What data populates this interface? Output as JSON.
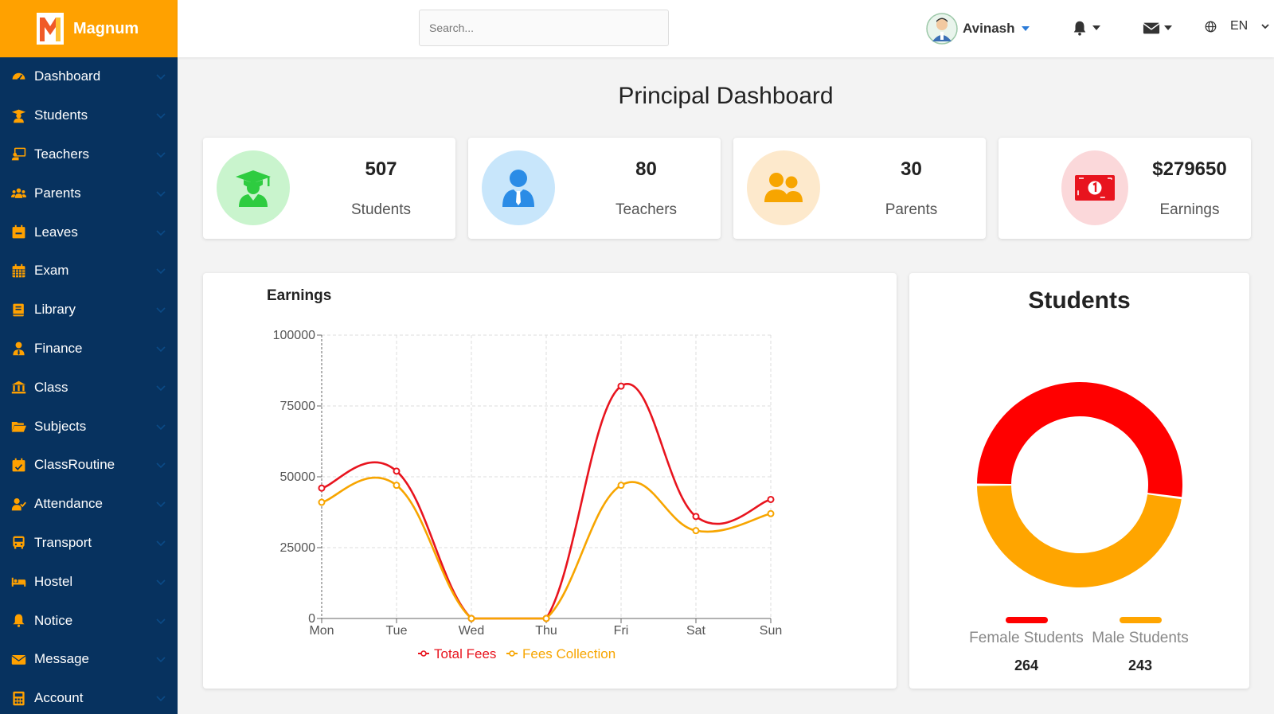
{
  "brand": {
    "name": "Magnum"
  },
  "sidebar": {
    "items": [
      {
        "label": "Dashboard",
        "icon": "gauge-icon"
      },
      {
        "label": "Students",
        "icon": "graduate-icon"
      },
      {
        "label": "Teachers",
        "icon": "chalkboard-teacher-icon"
      },
      {
        "label": "Parents",
        "icon": "users-icon"
      },
      {
        "label": "Leaves",
        "icon": "calendar-minus-icon"
      },
      {
        "label": "Exam",
        "icon": "calendar-grid-icon"
      },
      {
        "label": "Library",
        "icon": "book-icon"
      },
      {
        "label": "Finance",
        "icon": "user-tie-icon"
      },
      {
        "label": "Class",
        "icon": "university-icon"
      },
      {
        "label": "Subjects",
        "icon": "folder-open-icon"
      },
      {
        "label": "ClassRoutine",
        "icon": "calendar-check-icon"
      },
      {
        "label": "Attendance",
        "icon": "user-check-icon"
      },
      {
        "label": "Transport",
        "icon": "bus-icon"
      },
      {
        "label": "Hostel",
        "icon": "bed-icon"
      },
      {
        "label": "Notice",
        "icon": "bell-icon"
      },
      {
        "label": "Message",
        "icon": "envelope-icon"
      },
      {
        "label": "Account",
        "icon": "calculator-icon"
      }
    ]
  },
  "topbar": {
    "search_placeholder": "Search...",
    "user_name": "Avinash",
    "language": "EN"
  },
  "page": {
    "title": "Principal Dashboard"
  },
  "stats": [
    {
      "value": "507",
      "label": "Students",
      "icon": "graduate-icon"
    },
    {
      "value": "80",
      "label": "Teachers",
      "icon": "user-tie-icon"
    },
    {
      "value": "30",
      "label": "Parents",
      "icon": "users-icon"
    },
    {
      "value": "$279650",
      "label": "Earnings",
      "icon": "money-bill-icon"
    }
  ],
  "colors": {
    "sidebar_bg": "#07325f",
    "brand_bg": "#ffa100",
    "accent_red": "#e8141e",
    "accent_orange": "#f7a500",
    "students_circle": "#c9f4cd",
    "teachers_circle": "#c8e6fb",
    "parents_circle": "#fde9cc",
    "earnings_circle": "#fbd8da"
  },
  "chart_data": [
    {
      "type": "line",
      "title": "Earnings",
      "categories": [
        "Mon",
        "Tue",
        "Wed",
        "Thu",
        "Fri",
        "Sat",
        "Sun"
      ],
      "series": [
        {
          "name": "Total Fees",
          "color": "#e8141e",
          "values": [
            46000,
            52000,
            0,
            0,
            82000,
            36000,
            42000
          ]
        },
        {
          "name": "Fees Collection",
          "color": "#f7a500",
          "values": [
            41000,
            47000,
            0,
            0,
            47000,
            31000,
            37000
          ]
        }
      ],
      "ylim": [
        0,
        100000
      ],
      "yticks": [
        0,
        25000,
        50000,
        75000,
        100000
      ],
      "grid": true,
      "legend": "bottom"
    },
    {
      "type": "pie",
      "title": "Students",
      "categories": [
        "Female Students",
        "Male Students"
      ],
      "values": [
        264,
        243
      ],
      "colors": [
        "#ff0000",
        "#ffa500"
      ],
      "labels": [
        "264",
        "243"
      ],
      "legend": "bottom"
    }
  ]
}
